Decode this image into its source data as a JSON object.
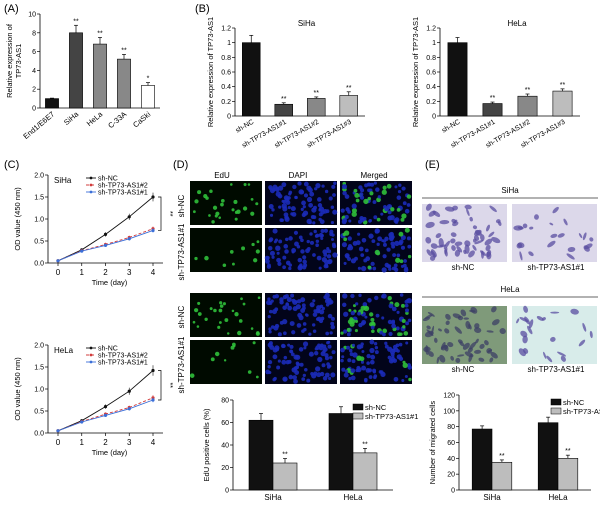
{
  "panel_labels": [
    "(A)",
    "(B)",
    "(C)",
    "(D)",
    "(E)"
  ],
  "colors": {
    "black": "#111111",
    "dark_gray": "#444444",
    "mid_gray": "#888888",
    "light_gray": "#bdbdbd",
    "red": "#d23c3c",
    "blue": "#3b6fd8",
    "edu_green": "#2fbf3a",
    "dapi_blue": "#1b2bb8",
    "stain_violet": "#5a4ea0"
  },
  "images": {
    "edu_grid": {
      "col_headers": [
        "EdU",
        "DAPI",
        "Merged"
      ],
      "row_labels": [
        "sh-NC",
        "sh-TP73-AS1#1",
        "sh-NC",
        "sh-TP73-AS1#1"
      ]
    },
    "transwell": {
      "siha_title": "SiHa",
      "hela_title": "HeLa",
      "captions": [
        "sh-NC",
        "sh-TP73-AS1#1"
      ]
    }
  },
  "chart_data": [
    {
      "id": "A",
      "type": "bar",
      "ylabel": "Relative expression of\nTP73-AS1",
      "categories": [
        "End1/E6E7",
        "SiHa",
        "HeLa",
        "C-33A",
        "CaSki"
      ],
      "values": [
        1.0,
        8.0,
        6.8,
        5.2,
        2.4
      ],
      "errors": [
        0.05,
        0.8,
        0.7,
        0.5,
        0.3
      ],
      "stars": [
        "",
        "**",
        "**",
        "**",
        "*"
      ],
      "ylim": [
        0,
        10
      ],
      "yticks": [
        0,
        2,
        4,
        6,
        8,
        10
      ]
    },
    {
      "id": "B1",
      "type": "bar",
      "title": "SiHa",
      "ylabel": "Relative expression of TP73-AS1",
      "categories": [
        "sh-NC",
        "sh-TP73-AS1#1",
        "sh-TP73-AS1#2",
        "sh-TP73-AS1#3"
      ],
      "values": [
        1.0,
        0.16,
        0.24,
        0.28
      ],
      "errors": [
        0.1,
        0.02,
        0.02,
        0.05
      ],
      "stars": [
        "",
        "**",
        "**",
        "**"
      ],
      "ylim": [
        0,
        1.2
      ],
      "yticks": [
        0,
        0.2,
        0.4,
        0.6,
        0.8,
        1.0,
        1.2
      ]
    },
    {
      "id": "B2",
      "type": "bar",
      "title": "HeLa",
      "ylabel": "Relative expression of TP73-AS1",
      "categories": [
        "sh-NC",
        "sh-TP73-AS1#1",
        "sh-TP73-AS1#2",
        "sh-TP73-AS1#3"
      ],
      "values": [
        1.0,
        0.17,
        0.27,
        0.34
      ],
      "errors": [
        0.07,
        0.02,
        0.03,
        0.03
      ],
      "stars": [
        "",
        "**",
        "**",
        "**"
      ],
      "ylim": [
        0,
        1.2
      ],
      "yticks": [
        0,
        0.2,
        0.4,
        0.6,
        0.8,
        1.0,
        1.2
      ]
    },
    {
      "id": "C1",
      "type": "line",
      "title": "SiHa",
      "xlabel": "Time (day)",
      "ylabel": "OD value (450 nm)",
      "x": [
        0,
        1,
        2,
        3,
        4
      ],
      "xlim": [
        0,
        4
      ],
      "ylim": [
        0,
        2.0
      ],
      "yticks": [
        0,
        0.5,
        1.0,
        1.5,
        2.0
      ],
      "series": [
        {
          "name": "sh-NC",
          "values": [
            0.05,
            0.3,
            0.65,
            1.05,
            1.5
          ],
          "errors": [
            0.01,
            0.03,
            0.05,
            0.07,
            0.1
          ]
        },
        {
          "name": "sh-TP73-AS1#2",
          "values": [
            0.05,
            0.28,
            0.42,
            0.58,
            0.78
          ],
          "errors": [
            0.01,
            0.02,
            0.04,
            0.04,
            0.05
          ]
        },
        {
          "name": "sh-TP73-AS1#1",
          "values": [
            0.05,
            0.27,
            0.4,
            0.55,
            0.74
          ],
          "errors": [
            0.01,
            0.02,
            0.03,
            0.04,
            0.05
          ]
        }
      ],
      "annotation": "**"
    },
    {
      "id": "C2",
      "type": "line",
      "title": "HeLa",
      "xlabel": "Time (day)",
      "ylabel": "OD value (450 nm)",
      "x": [
        0,
        1,
        2,
        3,
        4
      ],
      "xlim": [
        0,
        4
      ],
      "ylim": [
        0,
        2.0
      ],
      "yticks": [
        0,
        0.5,
        1.0,
        1.5,
        2.0
      ],
      "series": [
        {
          "name": "sh-NC",
          "values": [
            0.05,
            0.28,
            0.6,
            0.95,
            1.42
          ],
          "errors": [
            0.01,
            0.03,
            0.05,
            0.08,
            0.12
          ]
        },
        {
          "name": "sh-TP73-AS1#2",
          "values": [
            0.05,
            0.26,
            0.43,
            0.58,
            0.8
          ],
          "errors": [
            0.01,
            0.02,
            0.04,
            0.04,
            0.06
          ]
        },
        {
          "name": "sh-TP73-AS1#1",
          "values": [
            0.05,
            0.25,
            0.4,
            0.55,
            0.75
          ],
          "errors": [
            0.01,
            0.02,
            0.03,
            0.04,
            0.05
          ]
        }
      ],
      "annotation": "**"
    },
    {
      "id": "D",
      "type": "bar",
      "ylabel": "EdU positive cells (%)",
      "categories": [
        "SiHa",
        "HeLa"
      ],
      "series": [
        {
          "name": "sh-NC",
          "values": [
            62,
            68
          ],
          "errors": [
            6,
            6
          ]
        },
        {
          "name": "sh-TP73-AS1#1",
          "values": [
            24,
            33
          ],
          "errors": [
            4,
            4
          ]
        }
      ],
      "stars": [
        "**",
        "**"
      ],
      "ylim": [
        0,
        80
      ],
      "yticks": [
        0,
        20,
        40,
        60,
        80
      ]
    },
    {
      "id": "E",
      "type": "bar",
      "ylabel": "Number of migrated cells",
      "categories": [
        "SiHa",
        "HeLa"
      ],
      "series": [
        {
          "name": "sh-NC",
          "values": [
            77,
            85
          ],
          "errors": [
            4,
            7
          ]
        },
        {
          "name": "sh-TP73-AS1#1",
          "values": [
            35,
            40
          ],
          "errors": [
            3,
            4
          ]
        }
      ],
      "stars": [
        "**",
        "**"
      ],
      "ylim": [
        0,
        120
      ],
      "yticks": [
        0,
        20,
        40,
        60,
        80,
        100,
        120
      ]
    }
  ]
}
